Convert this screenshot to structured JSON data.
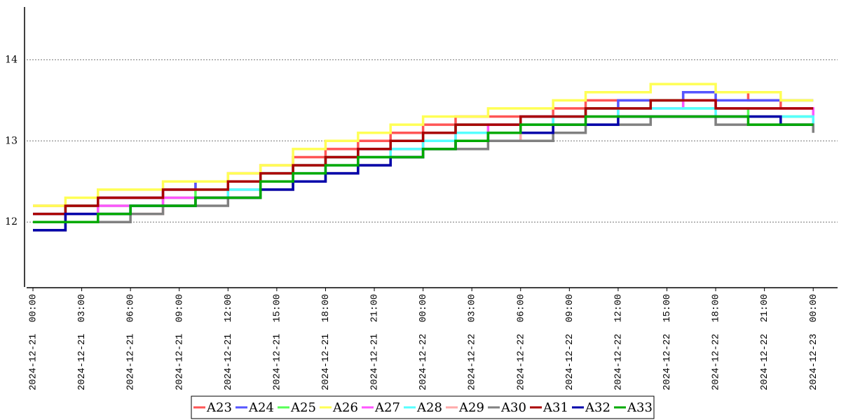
{
  "chart_data": {
    "type": "line",
    "step": "post",
    "x": [
      "2024-12-21 00:00",
      "2024-12-21 02:00",
      "2024-12-21 04:00",
      "2024-12-21 06:00",
      "2024-12-21 08:00",
      "2024-12-21 10:00",
      "2024-12-21 12:00",
      "2024-12-21 14:00",
      "2024-12-21 16:00",
      "2024-12-21 18:00",
      "2024-12-21 20:00",
      "2024-12-21 22:00",
      "2024-12-22 00:00",
      "2024-12-22 02:00",
      "2024-12-22 04:00",
      "2024-12-22 06:00",
      "2024-12-22 08:00",
      "2024-12-22 10:00",
      "2024-12-22 12:00",
      "2024-12-22 14:00",
      "2024-12-22 16:00",
      "2024-12-22 18:00",
      "2024-12-22 20:00",
      "2024-12-22 22:00",
      "2024-12-23 00:00"
    ],
    "series": [
      {
        "name": "A23",
        "color": "#ff5555",
        "values": [
          12.2,
          12.2,
          12.3,
          12.3,
          12.4,
          12.5,
          12.6,
          12.7,
          12.8,
          12.9,
          13.0,
          13.1,
          13.2,
          13.3,
          13.3,
          13.3,
          13.4,
          13.5,
          13.5,
          13.5,
          13.6,
          13.6,
          13.5,
          13.4,
          13.4
        ]
      },
      {
        "name": "A24",
        "color": "#5555ff",
        "values": [
          12.1,
          12.2,
          12.3,
          12.3,
          12.4,
          12.5,
          12.5,
          12.6,
          12.7,
          12.8,
          12.9,
          13.0,
          13.1,
          13.2,
          13.2,
          13.3,
          13.3,
          13.4,
          13.5,
          13.5,
          13.6,
          13.5,
          13.5,
          13.5,
          13.5
        ]
      },
      {
        "name": "A25",
        "color": "#55ff55",
        "values": [
          12.0,
          12.2,
          12.2,
          12.2,
          12.3,
          12.4,
          12.4,
          12.6,
          12.7,
          12.8,
          12.8,
          12.9,
          13.1,
          13.2,
          13.2,
          13.2,
          13.3,
          13.4,
          13.4,
          13.5,
          13.4,
          13.4,
          13.3,
          13.3,
          13.3
        ]
      },
      {
        "name": "A26",
        "color": "#ffff55",
        "values": [
          12.2,
          12.3,
          12.4,
          12.4,
          12.5,
          12.5,
          12.6,
          12.7,
          12.9,
          13.0,
          13.1,
          13.2,
          13.3,
          13.3,
          13.4,
          13.4,
          13.5,
          13.6,
          13.6,
          13.7,
          13.7,
          13.6,
          13.6,
          13.5,
          13.5
        ]
      },
      {
        "name": "A27",
        "color": "#ff55ff",
        "values": [
          12.0,
          12.1,
          12.2,
          12.2,
          12.3,
          12.3,
          12.4,
          12.5,
          12.6,
          12.7,
          12.8,
          12.9,
          13.0,
          13.1,
          13.2,
          13.2,
          13.3,
          13.3,
          13.4,
          13.4,
          13.5,
          13.4,
          13.4,
          13.4,
          13.3
        ]
      },
      {
        "name": "A28",
        "color": "#55ffff",
        "values": [
          12.0,
          12.0,
          12.1,
          12.2,
          12.2,
          12.3,
          12.4,
          12.5,
          12.6,
          12.7,
          12.8,
          12.9,
          13.0,
          13.1,
          13.1,
          13.2,
          13.3,
          13.3,
          13.4,
          13.4,
          13.4,
          13.3,
          13.3,
          13.3,
          13.2
        ]
      },
      {
        "name": "A29",
        "color": "#ffaaaa",
        "values": [
          11.9,
          12.1,
          12.1,
          12.1,
          12.2,
          12.3,
          12.3,
          12.4,
          12.5,
          12.6,
          12.7,
          12.8,
          12.9,
          13.0,
          13.0,
          13.1,
          13.2,
          13.3,
          13.3,
          13.3,
          13.3,
          13.3,
          13.3,
          13.2,
          13.2
        ]
      },
      {
        "name": "A30",
        "color": "#808080",
        "values": [
          11.9,
          12.0,
          12.0,
          12.1,
          12.2,
          12.2,
          12.3,
          12.4,
          12.5,
          12.6,
          12.7,
          12.8,
          12.9,
          12.9,
          13.0,
          13.0,
          13.1,
          13.2,
          13.2,
          13.3,
          13.3,
          13.2,
          13.2,
          13.2,
          13.1
        ]
      },
      {
        "name": "A31",
        "color": "#aa0000",
        "values": [
          12.1,
          12.2,
          12.3,
          12.3,
          12.4,
          12.4,
          12.5,
          12.6,
          12.7,
          12.8,
          12.9,
          13.0,
          13.1,
          13.2,
          13.2,
          13.3,
          13.3,
          13.4,
          13.4,
          13.5,
          13.5,
          13.4,
          13.4,
          13.4,
          13.4
        ]
      },
      {
        "name": "A32",
        "color": "#0000aa",
        "values": [
          11.9,
          12.1,
          12.1,
          12.2,
          12.2,
          12.3,
          12.3,
          12.4,
          12.5,
          12.6,
          12.7,
          12.8,
          12.9,
          13.0,
          13.1,
          13.1,
          13.2,
          13.2,
          13.3,
          13.3,
          13.3,
          13.3,
          13.3,
          13.2,
          13.2
        ]
      },
      {
        "name": "A33",
        "color": "#00aa00",
        "values": [
          12.0,
          12.0,
          12.1,
          12.2,
          12.2,
          12.3,
          12.3,
          12.5,
          12.6,
          12.7,
          12.8,
          12.8,
          12.9,
          13.0,
          13.1,
          13.2,
          13.2,
          13.3,
          13.3,
          13.3,
          13.3,
          13.3,
          13.2,
          13.2,
          13.2
        ]
      }
    ],
    "xlim": [
      "2024-12-21 00:00",
      "2024-12-23 01:30"
    ],
    "xticks": [
      "2024-12-21  00:00",
      "2024-12-21  03:00",
      "2024-12-21  06:00",
      "2024-12-21  09:00",
      "2024-12-21  12:00",
      "2024-12-21  15:00",
      "2024-12-21  18:00",
      "2024-12-21  21:00",
      "2024-12-22  00:00",
      "2024-12-22  03:00",
      "2024-12-22  06:00",
      "2024-12-22  09:00",
      "2024-12-22  12:00",
      "2024-12-22  15:00",
      "2024-12-22  18:00",
      "2024-12-22  21:00",
      "2024-12-23  00:00"
    ],
    "ylim": [
      11.2,
      14.65
    ],
    "yticks": [
      12,
      13,
      14
    ],
    "grid": true,
    "legend": "bottom"
  }
}
